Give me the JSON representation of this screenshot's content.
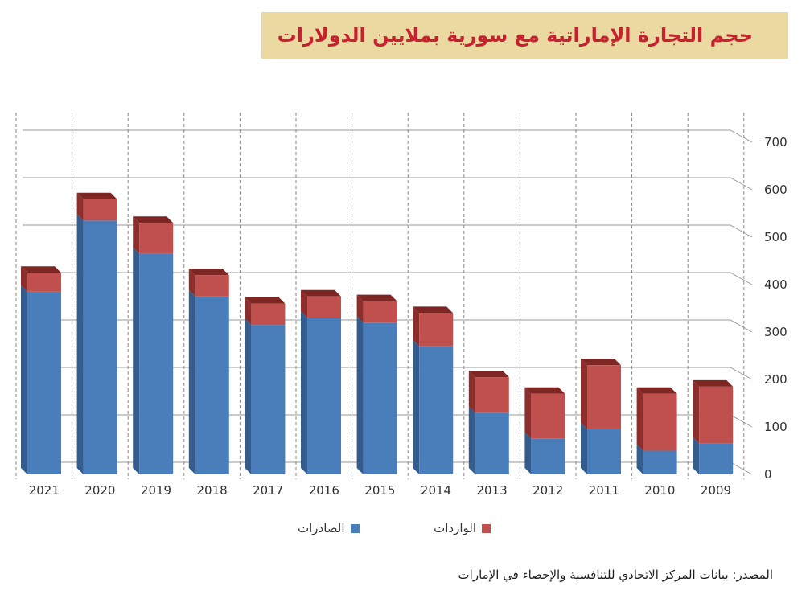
{
  "title": "حجم التجارة الإماراتية مع سورية بملايين الدولارات",
  "source": "المصدر: بيانات المركز الاتحادي للتنافسية والإحصاء في الإمارات",
  "colors": {
    "exports": "#4a7ebb",
    "exports_side": "#345c8c",
    "imports": "#c0504d",
    "imports_side": "#8c2e2c",
    "grid": "#999999",
    "title_bg": "#ead9a0",
    "title_text": "#c8202f"
  },
  "chart_data": {
    "type": "bar",
    "stacked": true,
    "categories": [
      "2021",
      "2020",
      "2019",
      "2018",
      "2017",
      "2016",
      "2015",
      "2014",
      "2013",
      "2012",
      "2011",
      "2010",
      "2009"
    ],
    "series": [
      {
        "name": "الصادرات",
        "values": [
          385,
          535,
          465,
          375,
          315,
          330,
          320,
          270,
          130,
          75,
          95,
          50,
          65
        ]
      },
      {
        "name": "الواردات",
        "values": [
          40,
          45,
          65,
          45,
          45,
          45,
          45,
          70,
          75,
          95,
          135,
          120,
          120
        ]
      }
    ],
    "yticks": [
      "0",
      "100",
      "200",
      "300",
      "400",
      "500",
      "600",
      "700"
    ],
    "ylim": [
      0,
      700
    ],
    "grid": true,
    "legend": "bottom-center"
  }
}
